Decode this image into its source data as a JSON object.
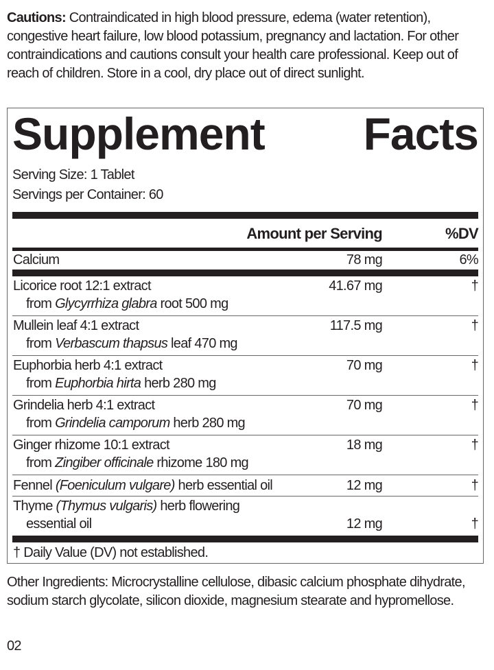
{
  "cautions": {
    "label": "Cautions:",
    "text": " Contraindicated in high blood pressure, edema (water retention), congestive heart failure, low blood potassium, pregnancy and lactation. For other contraindications and cautions consult your health care professional. Keep out of reach of children. Store in a cool, dry place out of direct sunlight."
  },
  "facts": {
    "title_word1": "Supplement",
    "title_word2": "Facts",
    "serving_size": "Serving Size: 1 Tablet",
    "servings_per_container": "Servings per Container: 60",
    "header_amount": "Amount per Serving",
    "header_dv": "%DV",
    "calcium": {
      "name": "Calcium",
      "amount": "78 mg",
      "dv": "6%"
    },
    "ingredients": [
      {
        "l1a": "Licorice root 12:1 extract",
        "l2a": "from ",
        "l2i": "Glycyrrhiza glabra",
        "l2b": " root 500 mg",
        "amount": "41.67 mg",
        "dv": "†"
      },
      {
        "l1a": "Mullein leaf 4:1 extract",
        "l2a": "from ",
        "l2i": "Verbascum thapsus",
        "l2b": " leaf 470 mg",
        "amount": "117.5 mg",
        "dv": "†"
      },
      {
        "l1a": "Euphorbia herb 4:1 extract",
        "l2a": "from ",
        "l2i": "Euphorbia hirta",
        "l2b": " herb 280 mg",
        "amount": "70 mg",
        "dv": "†"
      },
      {
        "l1a": "Grindelia herb 4:1 extract",
        "l2a": "from ",
        "l2i": "Grindelia camporum",
        "l2b": " herb 280 mg",
        "amount": "70 mg",
        "dv": "†"
      },
      {
        "l1a": "Ginger rhizome 10:1 extract",
        "l2a": "from ",
        "l2i": "Zingiber officinale",
        "l2b": " rhizome 180 mg",
        "amount": "18 mg",
        "dv": "†"
      }
    ],
    "fennel": {
      "a": "Fennel ",
      "i": "(Foeniculum vulgare)",
      "b": " herb essential oil",
      "amount": "12 mg",
      "dv": "†"
    },
    "thyme": {
      "a": "Thyme ",
      "i": "(Thymus vulgaris)",
      "b": " herb flowering",
      "l2": "essential oil",
      "amount": "12 mg",
      "dv": "†"
    },
    "footnote": "† Daily Value (DV) not established."
  },
  "other_ingredients": "Other Ingredients: Microcrystalline cellulose, dibasic calcium phosphate dihydrate, sodium starch glycolate, silicon dioxide, magnesium stearate and hypromellose.",
  "page_code": "02"
}
